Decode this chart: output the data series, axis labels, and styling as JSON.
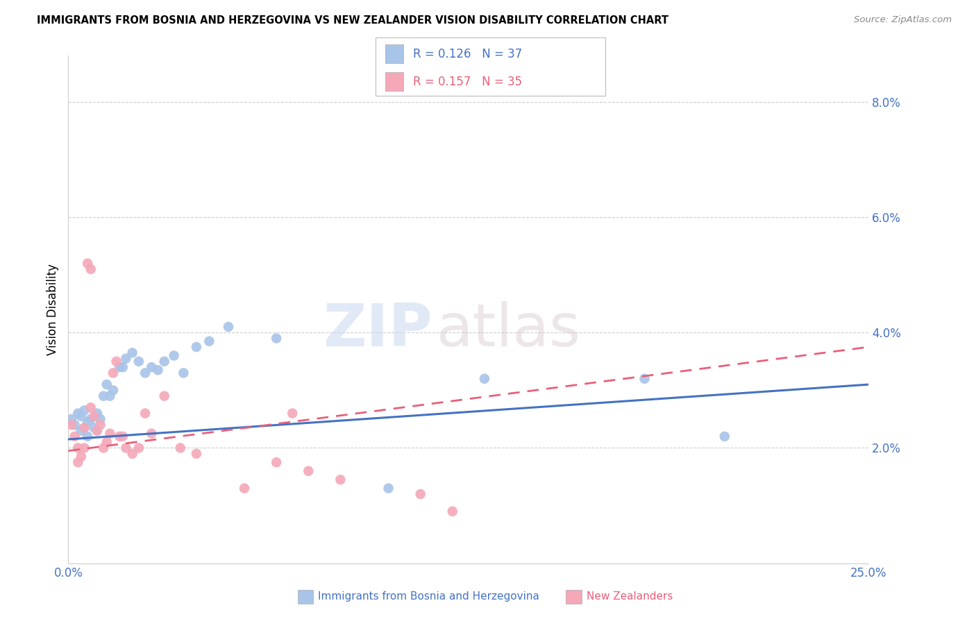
{
  "title": "IMMIGRANTS FROM BOSNIA AND HERZEGOVINA VS NEW ZEALANDER VISION DISABILITY CORRELATION CHART",
  "source": "Source: ZipAtlas.com",
  "ylabel": "Vision Disability",
  "xlim": [
    0.0,
    0.25
  ],
  "ylim": [
    0.0,
    0.088
  ],
  "yticks": [
    0.02,
    0.04,
    0.06,
    0.08
  ],
  "ytick_labels": [
    "2.0%",
    "4.0%",
    "6.0%",
    "8.0%"
  ],
  "xtick_labels": [
    "0.0%",
    "",
    "",
    "",
    "",
    "25.0%"
  ],
  "blue_R": 0.126,
  "blue_N": 37,
  "pink_R": 0.157,
  "pink_N": 35,
  "blue_color": "#a8c4e8",
  "pink_color": "#f4a8b8",
  "blue_line_color": "#4472c4",
  "pink_line_color": "#e8607a",
  "legend_label_blue": "Immigrants from Bosnia and Herzegovina",
  "legend_label_pink": "New Zealanders",
  "watermark_zip": "ZIP",
  "watermark_atlas": "atlas",
  "blue_x": [
    0.001,
    0.002,
    0.003,
    0.004,
    0.004,
    0.005,
    0.005,
    0.006,
    0.006,
    0.007,
    0.008,
    0.009,
    0.009,
    0.01,
    0.011,
    0.012,
    0.013,
    0.014,
    0.016,
    0.017,
    0.018,
    0.02,
    0.022,
    0.024,
    0.026,
    0.028,
    0.03,
    0.033,
    0.036,
    0.04,
    0.044,
    0.05,
    0.065,
    0.1,
    0.13,
    0.18,
    0.205
  ],
  "blue_y": [
    0.025,
    0.024,
    0.026,
    0.023,
    0.0255,
    0.0265,
    0.0235,
    0.0245,
    0.022,
    0.025,
    0.0235,
    0.026,
    0.023,
    0.025,
    0.029,
    0.031,
    0.029,
    0.03,
    0.034,
    0.034,
    0.0355,
    0.0365,
    0.035,
    0.033,
    0.034,
    0.0335,
    0.035,
    0.036,
    0.033,
    0.0375,
    0.0385,
    0.041,
    0.039,
    0.013,
    0.032,
    0.032,
    0.022
  ],
  "pink_x": [
    0.001,
    0.002,
    0.003,
    0.003,
    0.004,
    0.005,
    0.005,
    0.006,
    0.007,
    0.007,
    0.008,
    0.009,
    0.01,
    0.011,
    0.012,
    0.013,
    0.014,
    0.015,
    0.016,
    0.017,
    0.018,
    0.02,
    0.022,
    0.024,
    0.026,
    0.03,
    0.035,
    0.04,
    0.055,
    0.065,
    0.07,
    0.075,
    0.085,
    0.11,
    0.12
  ],
  "pink_y": [
    0.024,
    0.022,
    0.02,
    0.0175,
    0.0185,
    0.0235,
    0.02,
    0.052,
    0.051,
    0.027,
    0.0255,
    0.023,
    0.024,
    0.02,
    0.021,
    0.0225,
    0.033,
    0.035,
    0.022,
    0.022,
    0.02,
    0.019,
    0.02,
    0.026,
    0.0225,
    0.029,
    0.02,
    0.019,
    0.013,
    0.0175,
    0.026,
    0.016,
    0.0145,
    0.012,
    0.009
  ],
  "blue_line_x": [
    0.0,
    0.25
  ],
  "blue_line_y": [
    0.0215,
    0.031
  ],
  "pink_line_x": [
    0.0,
    0.25
  ],
  "pink_line_y": [
    0.0195,
    0.0375
  ]
}
